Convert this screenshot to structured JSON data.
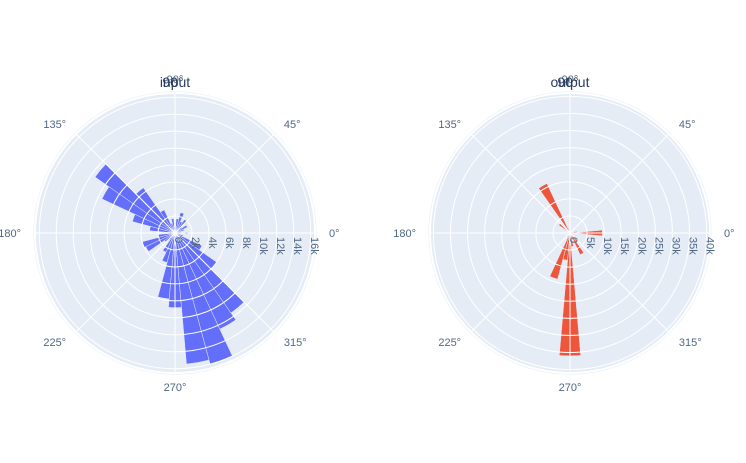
{
  "chart_data": [
    {
      "type": "barpolar",
      "title": "input",
      "title_overlap_label": "90°",
      "color": "#636efa",
      "radial_range": [
        0,
        16500
      ],
      "radial_ticks": [
        0,
        2000,
        4000,
        6000,
        8000,
        10000,
        12000,
        14000,
        16000
      ],
      "radial_tick_labels": [
        "0",
        "2k",
        "4k",
        "6k",
        "8k",
        "10k",
        "12k",
        "14k",
        "16k"
      ],
      "angular_tick_labels": [
        "0°",
        "45°",
        "90°",
        "135°",
        "180°",
        "225°",
        "270°",
        "315°"
      ],
      "bar_width_deg": 10,
      "theta": [
        0,
        10,
        20,
        30,
        40,
        50,
        60,
        70,
        80,
        90,
        100,
        110,
        120,
        130,
        140,
        150,
        160,
        170,
        180,
        190,
        200,
        210,
        220,
        230,
        240,
        250,
        260,
        270,
        280,
        290,
        300,
        310,
        320,
        330,
        340,
        350
      ],
      "r": [
        1500,
        700,
        1100,
        1600,
        1000,
        2100,
        1500,
        2500,
        1700,
        1100,
        1700,
        1200,
        3000,
        6500,
        11500,
        9500,
        5200,
        3000,
        800,
        2000,
        4000,
        3800,
        1500,
        1000,
        2500,
        3600,
        7800,
        8800,
        15500,
        16000,
        12500,
        11500,
        6000,
        3500,
        1000,
        500
      ]
    },
    {
      "type": "barpolar",
      "title": "output",
      "title_overlap_label": "90°",
      "color": "#ef553b",
      "radial_range": [
        0,
        41000
      ],
      "radial_ticks": [
        0,
        5000,
        10000,
        15000,
        20000,
        25000,
        30000,
        35000,
        40000
      ],
      "radial_tick_labels": [
        "0",
        "5k",
        "10k",
        "15k",
        "20k",
        "25k",
        "30k",
        "35k",
        "40k"
      ],
      "angular_tick_labels": [
        "0°",
        "45°",
        "90°",
        "135°",
        "180°",
        "225°",
        "270°",
        "315°"
      ],
      "bar_width_deg": 10,
      "theta": [
        0,
        10,
        20,
        30,
        40,
        50,
        60,
        70,
        80,
        90,
        100,
        110,
        120,
        130,
        140,
        150,
        160,
        170,
        180,
        190,
        200,
        210,
        220,
        230,
        240,
        250,
        260,
        270,
        280,
        290,
        300,
        310,
        320,
        330,
        340,
        350
      ],
      "r": [
        9500,
        2000,
        800,
        400,
        300,
        300,
        400,
        500,
        600,
        700,
        800,
        1500,
        16000,
        800,
        4000,
        300,
        300,
        200,
        200,
        300,
        400,
        600,
        700,
        1000,
        1500,
        14000,
        8000,
        36000,
        4000,
        2000,
        7000,
        3000,
        1000,
        800,
        600,
        500
      ]
    }
  ]
}
